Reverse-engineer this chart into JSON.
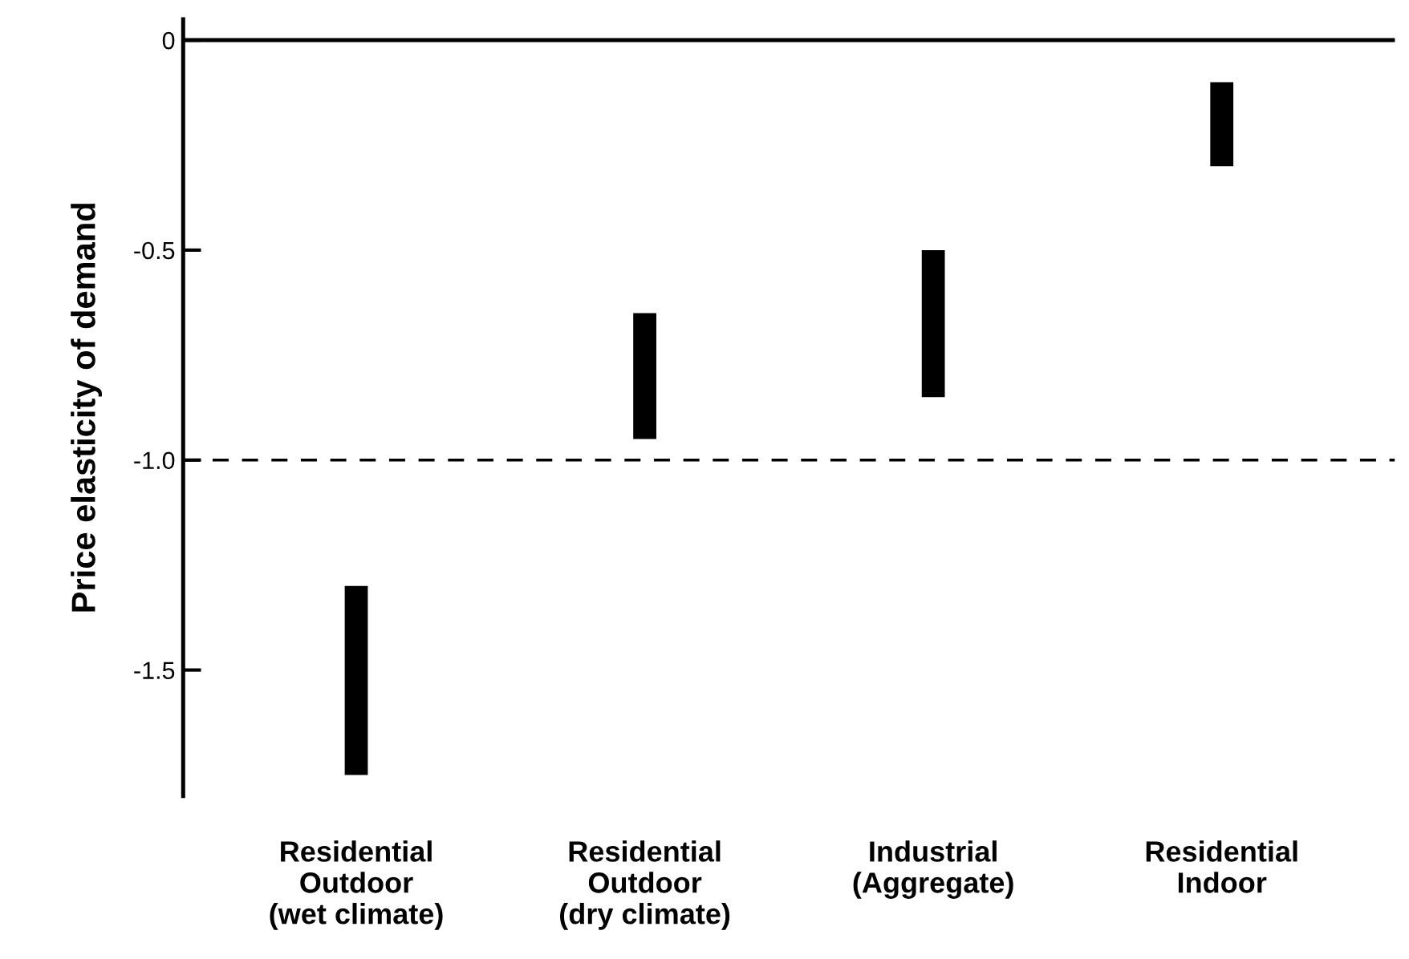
{
  "chart_data": {
    "type": "bar",
    "ylabel": "Price elasticity of demand",
    "categories": [
      "Residential\nOutdoor\n(wet climate)",
      "Residential\nOutdoor\n(dry climate)",
      "Industrial\n(Aggregate)",
      "Residential\nIndoor"
    ],
    "base": [
      -1.3,
      -0.65,
      -0.5,
      -0.1
    ],
    "values": [
      -0.45,
      -0.3,
      -0.35,
      -0.2
    ],
    "color": "#000000",
    "ylim": [
      -1.8,
      0.05
    ],
    "yticks": [
      {
        "value": 0,
        "label": "0"
      },
      -0.5,
      {
        "value": -1.0,
        "label": "-1.0"
      },
      -1.5
    ],
    "ref_lines": [
      {
        "axis": "y",
        "value": 0,
        "line_style": "solid",
        "color": "#000000"
      },
      {
        "axis": "y",
        "value": -1.0,
        "line_style": "dashed",
        "color": "#000000"
      }
    ],
    "grid": false,
    "legend": false
  }
}
